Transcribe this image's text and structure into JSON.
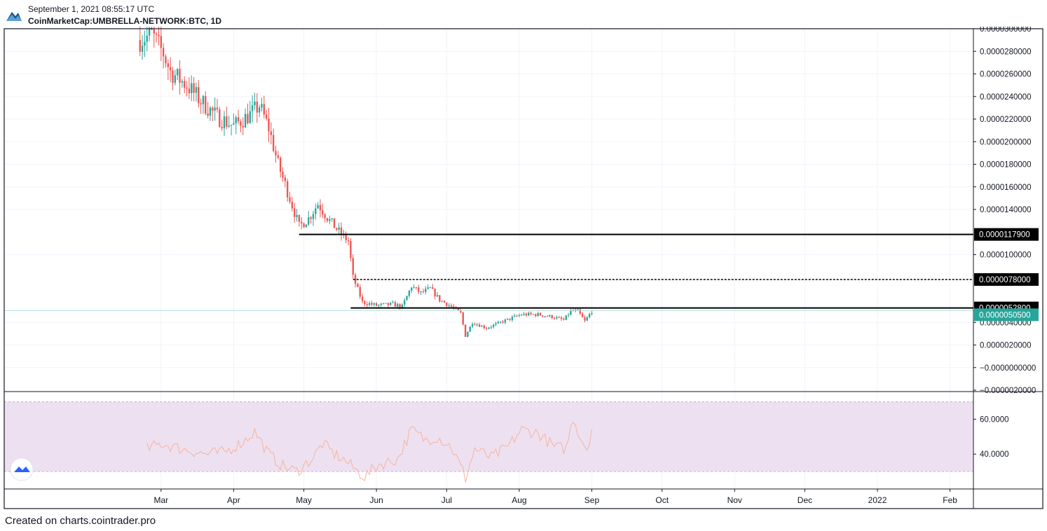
{
  "header": {
    "datetime": "September 1, 2021 08:55:17 UTC",
    "symbol": "CoinMarketCap:UMBRELLA-NETWORK:BTC, 1D"
  },
  "footer": {
    "text": "Created on charts.cointrader.pro"
  },
  "colors": {
    "up": "#26a69a",
    "down": "#ef5350",
    "rsi_line": "#f7b49b",
    "rsi_band": "#ede0f1",
    "last_price_badge": "#26a69a",
    "level_badge": "#000000"
  },
  "chart_data": [
    {
      "type": "candlestick",
      "title": "",
      "interval": "1D",
      "y_axis_labels": [
        "0.0000300000",
        "0.0000280000",
        "0.0000260000",
        "0.0000240000",
        "0.0000220000",
        "0.0000200000",
        "0.0000180000",
        "0.0000160000",
        "0.0000140000",
        "0.0000100000",
        "0.0000040000",
        "0.0000020000",
        "−0.0000000000",
        "−0.0000020000"
      ],
      "ylim": [
        -2e-06,
        3e-05
      ],
      "x_axis_labels": [
        "Mar",
        "Apr",
        "May",
        "Jun",
        "Jul",
        "Aug",
        "Sep",
        "Oct",
        "Nov",
        "Dec",
        "2022",
        "Feb"
      ],
      "x_axis_dates": [
        "2021-03-01",
        "2021-04-01",
        "2021-05-01",
        "2021-06-01",
        "2021-07-01",
        "2021-08-01",
        "2021-09-01",
        "2021-10-01",
        "2021-11-01",
        "2021-12-01",
        "2022-01-01",
        "2022-02-01"
      ],
      "x_range": [
        "2020-12-24",
        "2022-02-11"
      ],
      "grid": true,
      "price_anchors": [
        {
          "date": "2021-02-20",
          "price": 2.9e-05
        },
        {
          "date": "2021-02-25",
          "price": 2.95e-05
        },
        {
          "date": "2021-03-02",
          "price": 2.78e-05
        },
        {
          "date": "2021-03-05",
          "price": 2.62e-05
        },
        {
          "date": "2021-03-12",
          "price": 2.5e-05
        },
        {
          "date": "2021-03-18",
          "price": 2.36e-05
        },
        {
          "date": "2021-03-25",
          "price": 2.22e-05
        },
        {
          "date": "2021-04-01",
          "price": 2.14e-05
        },
        {
          "date": "2021-04-08",
          "price": 2.24e-05
        },
        {
          "date": "2021-04-12",
          "price": 2.32e-05
        },
        {
          "date": "2021-04-16",
          "price": 2.12e-05
        },
        {
          "date": "2021-04-20",
          "price": 1.8e-05
        },
        {
          "date": "2021-04-25",
          "price": 1.5e-05
        },
        {
          "date": "2021-04-29",
          "price": 1.25e-05
        },
        {
          "date": "2021-05-03",
          "price": 1.32e-05
        },
        {
          "date": "2021-05-07",
          "price": 1.45e-05
        },
        {
          "date": "2021-05-12",
          "price": 1.3e-05
        },
        {
          "date": "2021-05-17",
          "price": 1.18e-05
        },
        {
          "date": "2021-05-20",
          "price": 1.12e-05
        },
        {
          "date": "2021-05-22",
          "price": 8e-06
        },
        {
          "date": "2021-05-26",
          "price": 5.8e-06
        },
        {
          "date": "2021-06-01",
          "price": 5.5e-06
        },
        {
          "date": "2021-06-08",
          "price": 5.6e-06
        },
        {
          "date": "2021-06-12",
          "price": 5.4e-06
        },
        {
          "date": "2021-06-16",
          "price": 7.2e-06
        },
        {
          "date": "2021-06-20",
          "price": 6.6e-06
        },
        {
          "date": "2021-06-24",
          "price": 7e-06
        },
        {
          "date": "2021-06-28",
          "price": 6e-06
        },
        {
          "date": "2021-07-03",
          "price": 5.4e-06
        },
        {
          "date": "2021-07-07",
          "price": 4.8e-06
        },
        {
          "date": "2021-07-09",
          "price": 2.8e-06
        },
        {
          "date": "2021-07-12",
          "price": 4e-06
        },
        {
          "date": "2021-07-18",
          "price": 3.5e-06
        },
        {
          "date": "2021-07-24",
          "price": 4e-06
        },
        {
          "date": "2021-07-29",
          "price": 4.4e-06
        },
        {
          "date": "2021-08-02",
          "price": 4.7e-06
        },
        {
          "date": "2021-08-09",
          "price": 4.7e-06
        },
        {
          "date": "2021-08-15",
          "price": 4.5e-06
        },
        {
          "date": "2021-08-20",
          "price": 4.2e-06
        },
        {
          "date": "2021-08-23",
          "price": 5e-06
        },
        {
          "date": "2021-08-26",
          "price": 5e-06
        },
        {
          "date": "2021-08-29",
          "price": 4.1e-06
        },
        {
          "date": "2021-09-01",
          "price": 5e-06
        }
      ],
      "horizontal_levels": [
        {
          "price": 1.179e-05,
          "label": "0.0000117900",
          "style": "solid",
          "start": "2021-04-29"
        },
        {
          "price": 7.8e-06,
          "label": "0.0000078000",
          "style": "dashed",
          "start": "2021-05-22"
        },
        {
          "price": 5.28e-06,
          "label": "0.0000052800",
          "style": "solid",
          "start": "2021-05-21"
        }
      ],
      "last_price": {
        "price": 5.05e-06,
        "label": "0.0000050500"
      }
    },
    {
      "type": "line",
      "title": "",
      "y_axis_labels": [
        "60.0000",
        "40.0000"
      ],
      "ylim": [
        20,
        75
      ],
      "band": [
        30,
        70
      ],
      "rsi_anchors": [
        {
          "date": "2021-02-23",
          "value": 43
        },
        {
          "date": "2021-03-01",
          "value": 46
        },
        {
          "date": "2021-03-10",
          "value": 43
        },
        {
          "date": "2021-03-20",
          "value": 40
        },
        {
          "date": "2021-03-28",
          "value": 41
        },
        {
          "date": "2021-04-05",
          "value": 47
        },
        {
          "date": "2021-04-10",
          "value": 53
        },
        {
          "date": "2021-04-16",
          "value": 40
        },
        {
          "date": "2021-04-22",
          "value": 33
        },
        {
          "date": "2021-04-28",
          "value": 30
        },
        {
          "date": "2021-05-05",
          "value": 38
        },
        {
          "date": "2021-05-09",
          "value": 46
        },
        {
          "date": "2021-05-14",
          "value": 40
        },
        {
          "date": "2021-05-19",
          "value": 36
        },
        {
          "date": "2021-05-24",
          "value": 30
        },
        {
          "date": "2021-05-27",
          "value": 27
        },
        {
          "date": "2021-06-02",
          "value": 34
        },
        {
          "date": "2021-06-10",
          "value": 37
        },
        {
          "date": "2021-06-16",
          "value": 54
        },
        {
          "date": "2021-06-22",
          "value": 48
        },
        {
          "date": "2021-06-27",
          "value": 50
        },
        {
          "date": "2021-07-03",
          "value": 44
        },
        {
          "date": "2021-07-08",
          "value": 30
        },
        {
          "date": "2021-07-09",
          "value": 26
        },
        {
          "date": "2021-07-13",
          "value": 43
        },
        {
          "date": "2021-07-20",
          "value": 38
        },
        {
          "date": "2021-07-27",
          "value": 44
        },
        {
          "date": "2021-08-02",
          "value": 54
        },
        {
          "date": "2021-08-09",
          "value": 52
        },
        {
          "date": "2021-08-16",
          "value": 44
        },
        {
          "date": "2021-08-21",
          "value": 43
        },
        {
          "date": "2021-08-24",
          "value": 61
        },
        {
          "date": "2021-08-27",
          "value": 50
        },
        {
          "date": "2021-08-30",
          "value": 43
        },
        {
          "date": "2021-09-01",
          "value": 55
        }
      ]
    }
  ]
}
